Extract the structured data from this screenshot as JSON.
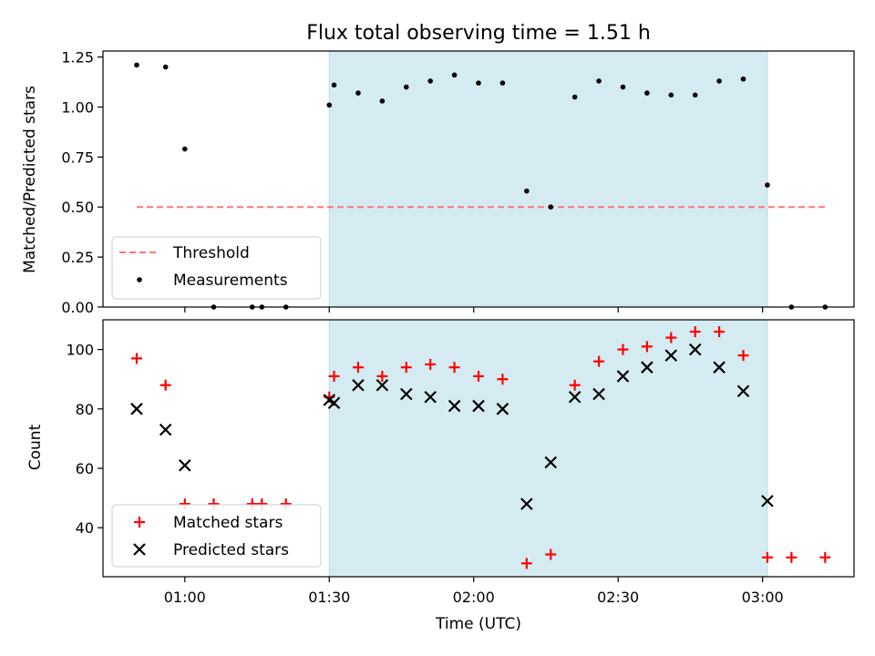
{
  "chart_data": [
    {
      "type": "scatter",
      "title": "Flux total observing time = 1.51 h",
      "xlabel": "",
      "ylabel": "Matched/Predicted stars",
      "xlim": [
        "00:43",
        "03:19"
      ],
      "ylim": [
        0,
        1.28
      ],
      "x_ticks": [
        "01:00",
        "01:30",
        "02:00",
        "02:30",
        "03:00"
      ],
      "y_ticks": [
        "0.00",
        "0.25",
        "0.50",
        "0.75",
        "1.00",
        "1.25"
      ],
      "y_tick_values": [
        0,
        0.25,
        0.5,
        0.75,
        1.0,
        1.25
      ],
      "shaded_interval": {
        "start": "01:30",
        "end": "03:01",
        "color": "#d4ebf1"
      },
      "legend_position": "lower-left",
      "series": [
        {
          "name": "Threshold",
          "style": "dashed-line",
          "color": "#ff7777",
          "x": [
            "00:50",
            "03:13"
          ],
          "y": [
            0.5,
            0.5
          ]
        },
        {
          "name": "Measurements",
          "style": "dot",
          "color": "#000000",
          "x": [
            "00:50",
            "00:56",
            "01:00",
            "01:06",
            "01:14",
            "01:16",
            "01:21",
            "01:30",
            "01:31",
            "01:36",
            "01:41",
            "01:46",
            "01:51",
            "01:56",
            "02:01",
            "02:06",
            "02:11",
            "02:16",
            "02:21",
            "02:26",
            "02:31",
            "02:36",
            "02:41",
            "02:46",
            "02:51",
            "02:56",
            "03:01",
            "03:06",
            "03:13"
          ],
          "y": [
            1.21,
            1.2,
            0.79,
            0.0,
            0.0,
            0.0,
            0.0,
            1.01,
            1.11,
            1.07,
            1.03,
            1.1,
            1.13,
            1.16,
            1.12,
            1.12,
            0.58,
            0.5,
            1.05,
            1.13,
            1.1,
            1.07,
            1.06,
            1.06,
            1.13,
            1.14,
            0.61,
            0.0,
            0.0
          ]
        }
      ]
    },
    {
      "type": "scatter",
      "title": "",
      "xlabel": "Time (UTC)",
      "ylabel": "Count",
      "xlim": [
        "00:43",
        "03:19"
      ],
      "ylim": [
        23.5,
        110
      ],
      "x_ticks": [
        "01:00",
        "01:30",
        "02:00",
        "02:30",
        "03:00"
      ],
      "y_ticks": [
        "40",
        "60",
        "80",
        "100"
      ],
      "y_tick_values": [
        40,
        60,
        80,
        100
      ],
      "shaded_interval": {
        "start": "01:30",
        "end": "03:01",
        "color": "#d4ebf1"
      },
      "legend_position": "lower-left",
      "series": [
        {
          "name": "Matched stars",
          "style": "plus",
          "color": "#ff0000",
          "x": [
            "00:50",
            "00:56",
            "01:00",
            "01:06",
            "01:14",
            "01:16",
            "01:21",
            "01:30",
            "01:31",
            "01:36",
            "01:41",
            "01:46",
            "01:51",
            "01:56",
            "02:01",
            "02:06",
            "02:11",
            "02:16",
            "02:21",
            "02:26",
            "02:31",
            "02:36",
            "02:41",
            "02:46",
            "02:51",
            "02:56",
            "03:01",
            "03:06",
            "03:13"
          ],
          "y": [
            97,
            88,
            48,
            48,
            48,
            48,
            48,
            84,
            91,
            94,
            91,
            94,
            95,
            94,
            91,
            90,
            28,
            31,
            88,
            96,
            100,
            101,
            104,
            106,
            106,
            98,
            30,
            30,
            30
          ]
        },
        {
          "name": "Predicted stars",
          "style": "x",
          "color": "#000000",
          "x": [
            "00:50",
            "00:56",
            "01:00",
            "01:30",
            "01:31",
            "01:36",
            "01:41",
            "01:46",
            "01:51",
            "01:56",
            "02:01",
            "02:06",
            "02:11",
            "02:16",
            "02:21",
            "02:26",
            "02:31",
            "02:36",
            "02:41",
            "02:46",
            "02:51",
            "02:56",
            "03:01"
          ],
          "y": [
            80,
            73,
            61,
            83,
            82,
            88,
            88,
            85,
            84,
            81,
            81,
            80,
            48,
            62,
            84,
            85,
            91,
            94,
            98,
            100,
            94,
            86,
            49
          ]
        }
      ]
    }
  ]
}
